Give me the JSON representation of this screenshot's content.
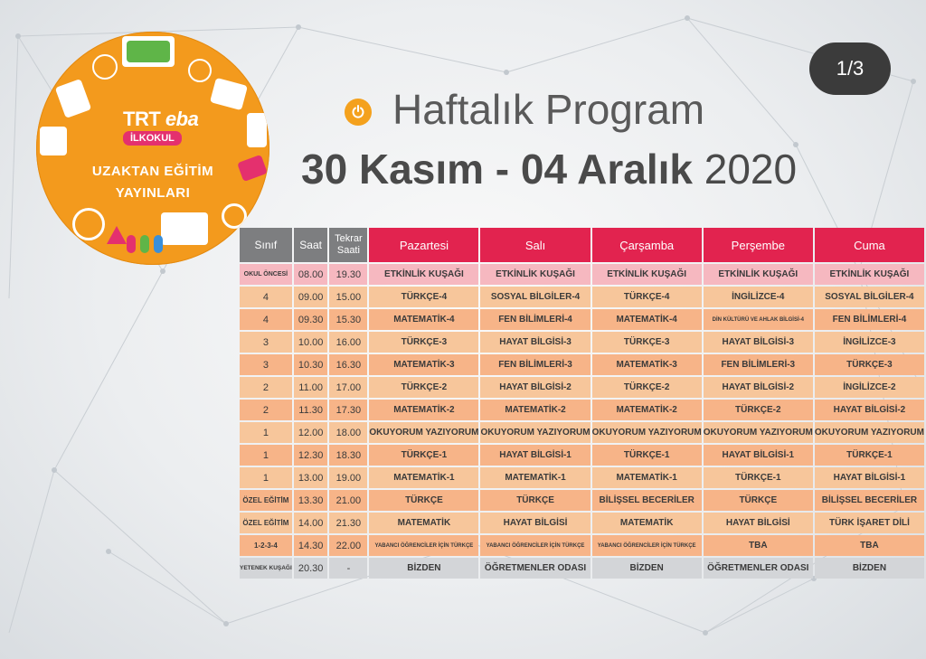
{
  "logo": {
    "brand_trt": "TRT",
    "brand_eba": "eba",
    "pill": "İLKOKUL",
    "line1": "UZAKTAN EĞİTİM",
    "line2": "YAYINLARI"
  },
  "counter": "1/3",
  "title": {
    "line1": "Haftalık Program",
    "range_bold": "30 Kasım - 04 Aralık",
    "year": "2020"
  },
  "colors": {
    "accent_orange": "#f39a1d",
    "header_red": "#e2234f",
    "header_grey": "#7d7e80"
  },
  "table": {
    "headers": [
      "Sınıf",
      "Saat",
      "Tekrar Saati",
      "Pazartesi",
      "Salı",
      "Çarşamba",
      "Perşembe",
      "Cuma"
    ],
    "rows": [
      {
        "sinif": "OKUL ÖNCESİ",
        "saat": "08.00",
        "tekrar": "19.30",
        "days": [
          "ETKİNLİK KUŞAĞI",
          "ETKİNLİK KUŞAĞI",
          "ETKİNLİK KUŞAĞI",
          "ETKİNLİK KUŞAĞI",
          "ETKİNLİK KUŞAĞI"
        ]
      },
      {
        "sinif": "4",
        "saat": "09.00",
        "tekrar": "15.00",
        "days": [
          "TÜRKÇE-4",
          "SOSYAL BİLGİLER-4",
          "TÜRKÇE-4",
          "İNGİLİZCE-4",
          "SOSYAL BİLGİLER-4"
        ]
      },
      {
        "sinif": "4",
        "saat": "09.30",
        "tekrar": "15.30",
        "days": [
          "MATEMATİK-4",
          "FEN BİLİMLERİ-4",
          "MATEMATİK-4",
          "DİN KÜLTÜRÜ VE AHLAK BİLGİSİ-4",
          "FEN BİLİMLERİ-4"
        ]
      },
      {
        "sinif": "3",
        "saat": "10.00",
        "tekrar": "16.00",
        "days": [
          "TÜRKÇE-3",
          "HAYAT BİLGİSİ-3",
          "TÜRKÇE-3",
          "HAYAT BİLGİSİ-3",
          "İNGİLİZCE-3"
        ]
      },
      {
        "sinif": "3",
        "saat": "10.30",
        "tekrar": "16.30",
        "days": [
          "MATEMATİK-3",
          "FEN BİLİMLERİ-3",
          "MATEMATİK-3",
          "FEN BİLİMLERİ-3",
          "TÜRKÇE-3"
        ]
      },
      {
        "sinif": "2",
        "saat": "11.00",
        "tekrar": "17.00",
        "days": [
          "TÜRKÇE-2",
          "HAYAT BİLGİSİ-2",
          "TÜRKÇE-2",
          "HAYAT BİLGİSİ-2",
          "İNGİLİZCE-2"
        ]
      },
      {
        "sinif": "2",
        "saat": "11.30",
        "tekrar": "17.30",
        "days": [
          "MATEMATİK-2",
          "MATEMATİK-2",
          "MATEMATİK-2",
          "TÜRKÇE-2",
          "HAYAT BİLGİSİ-2"
        ]
      },
      {
        "sinif": "1",
        "saat": "12.00",
        "tekrar": "18.00",
        "days": [
          "OKUYORUM YAZIYORUM",
          "OKUYORUM YAZIYORUM",
          "OKUYORUM YAZIYORUM",
          "OKUYORUM YAZIYORUM",
          "OKUYORUM YAZIYORUM"
        ]
      },
      {
        "sinif": "1",
        "saat": "12.30",
        "tekrar": "18.30",
        "days": [
          "TÜRKÇE-1",
          "HAYAT BİLGİSİ-1",
          "TÜRKÇE-1",
          "HAYAT BİLGİSİ-1",
          "TÜRKÇE-1"
        ]
      },
      {
        "sinif": "1",
        "saat": "13.00",
        "tekrar": "19.00",
        "days": [
          "MATEMATİK-1",
          "MATEMATİK-1",
          "MATEMATİK-1",
          "TÜRKÇE-1",
          "HAYAT BİLGİSİ-1"
        ]
      },
      {
        "sinif": "ÖZEL EĞİTİM",
        "saat": "13.30",
        "tekrar": "21.00",
        "days": [
          "TÜRKÇE",
          "TÜRKÇE",
          "BİLİŞSEL BECERİLER",
          "TÜRKÇE",
          "BİLİŞSEL BECERİLER"
        ]
      },
      {
        "sinif": "ÖZEL EĞİTİM",
        "saat": "14.00",
        "tekrar": "21.30",
        "days": [
          "MATEMATİK",
          "HAYAT BİLGİSİ",
          "MATEMATİK",
          "HAYAT BİLGİSİ",
          "TÜRK İŞARET DİLİ"
        ]
      },
      {
        "sinif": "1-2-3-4",
        "saat": "14.30",
        "tekrar": "22.00",
        "days": [
          "YABANCI ÖĞRENCİLER İÇİN TÜRKÇE",
          "YABANCI ÖĞRENCİLER İÇİN TÜRKÇE",
          "YABANCI ÖĞRENCİLER İÇİN TÜRKÇE",
          "TBA",
          "TBA"
        ]
      },
      {
        "sinif": "YETENEK KUŞAĞI",
        "saat": "20.30",
        "tekrar": "-",
        "days": [
          "BİZDEN",
          "ÖĞRETMENLER ODASI",
          "BİZDEN",
          "ÖĞRETMENLER ODASI",
          "BİZDEN"
        ]
      }
    ]
  }
}
